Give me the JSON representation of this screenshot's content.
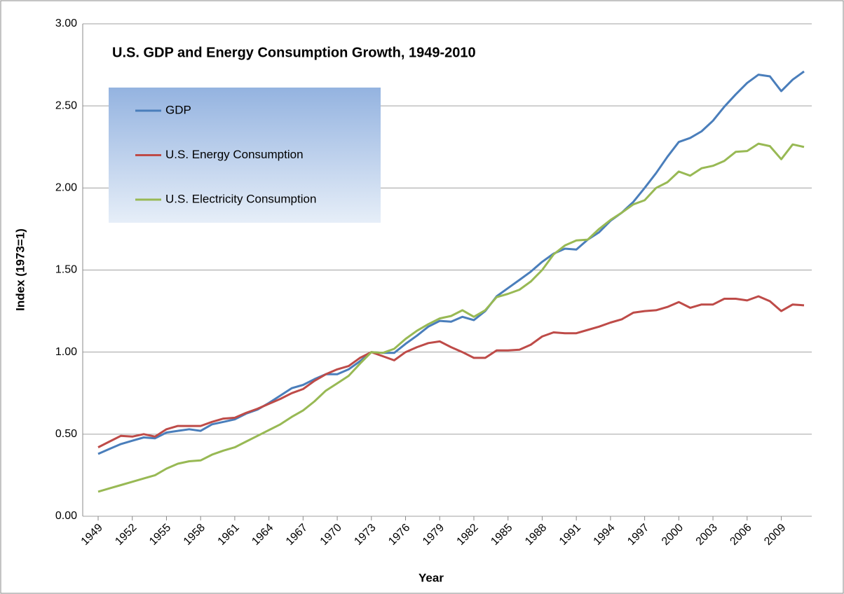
{
  "chart_data": {
    "type": "line",
    "title": "U.S. GDP and Energy Consumption Growth, 1949-2010",
    "x_label": "Year",
    "y_label": "Index (1973=1)",
    "categories": [
      "1949",
      null,
      null,
      "1952",
      null,
      null,
      "1955",
      null,
      null,
      "1958",
      null,
      null,
      "1961",
      null,
      null,
      "1964",
      null,
      null,
      "1967",
      null,
      null,
      "1970",
      null,
      null,
      "1973",
      null,
      null,
      "1976",
      null,
      null,
      "1979",
      null,
      null,
      "1982",
      null,
      null,
      "1985",
      null,
      null,
      "1988",
      null,
      null,
      "1991",
      null,
      null,
      "1994",
      null,
      null,
      "1997",
      null,
      null,
      "2000",
      null,
      null,
      "2003",
      null,
      null,
      "2006",
      null,
      null,
      "2009",
      null,
      null
    ],
    "series": [
      {
        "name": "GDP",
        "color": "#4a7ebb",
        "values": [
          0.38,
          0.41,
          0.44,
          0.46,
          0.48,
          0.475,
          0.51,
          0.52,
          0.53,
          0.52,
          0.56,
          0.575,
          0.59,
          0.625,
          0.65,
          0.69,
          0.735,
          0.78,
          0.8,
          0.835,
          0.865,
          0.865,
          0.895,
          0.945,
          1.0,
          0.995,
          0.995,
          1.05,
          1.1,
          1.155,
          1.19,
          1.185,
          1.215,
          1.195,
          1.25,
          1.34,
          1.39,
          1.44,
          1.49,
          1.55,
          1.6,
          1.63,
          1.625,
          1.685,
          1.73,
          1.8,
          1.85,
          1.915,
          2.0,
          2.09,
          2.19,
          2.28,
          2.305,
          2.345,
          2.41,
          2.495,
          2.57,
          2.64,
          2.69,
          2.68,
          2.59,
          2.66,
          2.71
        ]
      },
      {
        "name": "U.S. Energy Consumption",
        "color": "#be4b48",
        "values": [
          0.42,
          0.455,
          0.49,
          0.485,
          0.5,
          0.485,
          0.53,
          0.55,
          0.55,
          0.55,
          0.575,
          0.595,
          0.6,
          0.63,
          0.655,
          0.685,
          0.715,
          0.75,
          0.775,
          0.825,
          0.865,
          0.895,
          0.915,
          0.965,
          1.0,
          0.975,
          0.95,
          1.0,
          1.03,
          1.055,
          1.065,
          1.03,
          1.0,
          0.965,
          0.965,
          1.01,
          1.01,
          1.015,
          1.045,
          1.095,
          1.12,
          1.115,
          1.115,
          1.135,
          1.155,
          1.18,
          1.2,
          1.24,
          1.25,
          1.255,
          1.275,
          1.305,
          1.27,
          1.29,
          1.29,
          1.325,
          1.325,
          1.315,
          1.34,
          1.31,
          1.25,
          1.29,
          1.285
        ]
      },
      {
        "name": "U.S. Electricity Consumption",
        "color": "#98b954",
        "values": [
          0.15,
          0.17,
          0.19,
          0.21,
          0.23,
          0.25,
          0.29,
          0.32,
          0.335,
          0.34,
          0.375,
          0.4,
          0.42,
          0.455,
          0.49,
          0.525,
          0.56,
          0.605,
          0.645,
          0.7,
          0.765,
          0.81,
          0.855,
          0.93,
          1.0,
          0.995,
          1.02,
          1.08,
          1.13,
          1.17,
          1.205,
          1.22,
          1.255,
          1.215,
          1.255,
          1.335,
          1.355,
          1.38,
          1.43,
          1.5,
          1.595,
          1.65,
          1.68,
          1.685,
          1.75,
          1.805,
          1.85,
          1.9,
          1.925,
          2.0,
          2.035,
          2.1,
          2.075,
          2.12,
          2.135,
          2.165,
          2.22,
          2.225,
          2.27,
          2.255,
          2.175,
          2.265,
          2.25
        ]
      }
    ],
    "ylim": [
      0,
      3
    ],
    "yticks": [
      {
        "value": 0,
        "label": "0.00"
      },
      {
        "value": 0.5,
        "label": "0.50"
      },
      {
        "value": 1,
        "label": "1.00"
      },
      {
        "value": 1.5,
        "label": "1.50"
      },
      {
        "value": 2,
        "label": "2.00"
      },
      {
        "value": 2.5,
        "label": "2.50"
      },
      {
        "value": 3,
        "label": "3.00"
      }
    ],
    "grid": true,
    "legend": "upper-left"
  }
}
